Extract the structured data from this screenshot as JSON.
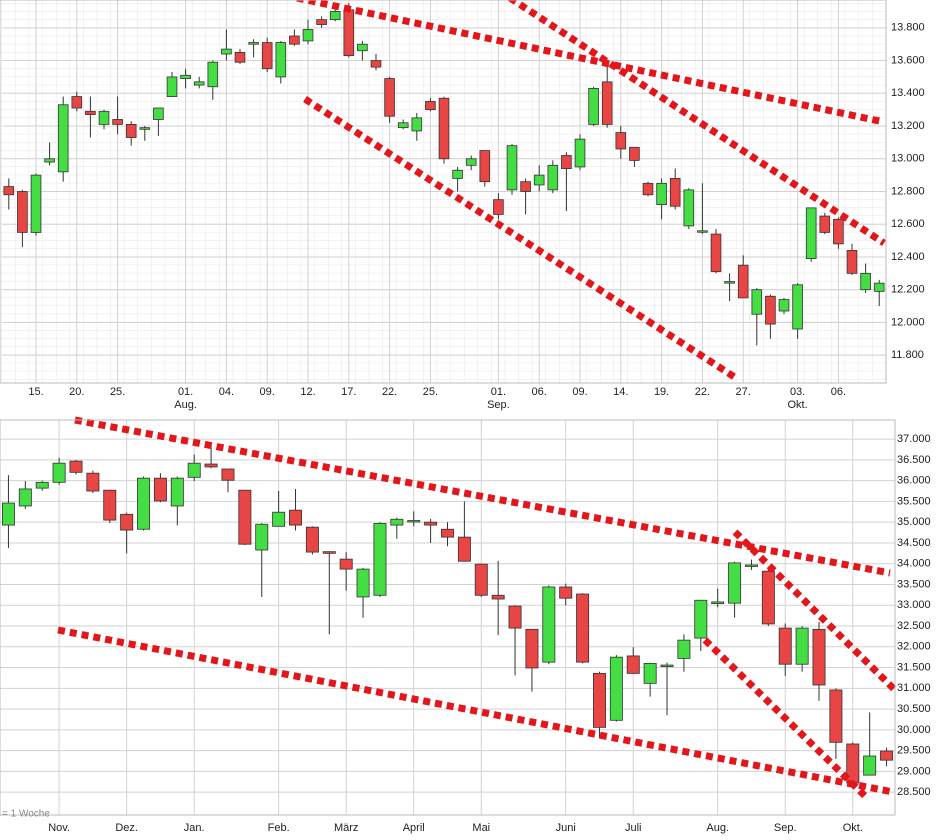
{
  "chart_data": [
    {
      "type": "candlestick",
      "categories": [
        null,
        null,
        "15.",
        null,
        null,
        "20.",
        null,
        null,
        "25.",
        null,
        null,
        null,
        null,
        "01.",
        null,
        null,
        "04.",
        null,
        null,
        "09.",
        null,
        null,
        "12.",
        null,
        null,
        "17.",
        null,
        null,
        "22.",
        null,
        null,
        "25.",
        null,
        null,
        null,
        null,
        "01.",
        null,
        null,
        "06.",
        null,
        null,
        "09.",
        null,
        null,
        "14.",
        null,
        null,
        "19.",
        null,
        null,
        "22.",
        null,
        null,
        "27.",
        null,
        null,
        null,
        "03.",
        null,
        null,
        "06.",
        null,
        null,
        null
      ],
      "months": [
        null,
        null,
        null,
        null,
        null,
        null,
        null,
        null,
        null,
        null,
        null,
        null,
        null,
        "Aug.",
        null,
        null,
        null,
        null,
        null,
        null,
        null,
        null,
        null,
        null,
        null,
        null,
        null,
        null,
        null,
        null,
        null,
        null,
        null,
        null,
        null,
        null,
        "Sep.",
        null,
        null,
        null,
        null,
        null,
        null,
        null,
        null,
        null,
        null,
        null,
        null,
        null,
        null,
        null,
        null,
        null,
        null,
        null,
        null,
        null,
        "Okt.",
        null,
        null,
        null,
        null,
        null,
        null
      ],
      "open": [
        12830,
        12800,
        12550,
        12980,
        12920,
        13380,
        13290,
        13210,
        13240,
        13210,
        13180,
        13240,
        13380,
        13490,
        13450,
        13440,
        13640,
        13650,
        13700,
        13710,
        13500,
        13750,
        13720,
        13850,
        13850,
        13910,
        13660,
        13600,
        13490,
        13190,
        13170,
        13350,
        13370,
        12880,
        12960,
        13050,
        12750,
        12810,
        12860,
        12840,
        12810,
        13020,
        12950,
        13210,
        13470,
        13160,
        13070,
        12850,
        12720,
        12880,
        12590,
        12560,
        12540,
        12240,
        12350,
        12050,
        12160,
        12070,
        11960,
        12390,
        12650,
        12630,
        12440,
        12200,
        12190
      ],
      "high": [
        12880,
        12810,
        12910,
        13100,
        13380,
        13410,
        13380,
        13300,
        13380,
        13230,
        13200,
        13310,
        13530,
        13550,
        13500,
        13600,
        13790,
        13670,
        13730,
        13740,
        13720,
        13790,
        13850,
        13870,
        13950,
        13950,
        13720,
        13640,
        13500,
        13240,
        13280,
        13370,
        13380,
        12950,
        13020,
        13050,
        12790,
        13090,
        12880,
        12960,
        12990,
        13040,
        13150,
        13440,
        13570,
        13200,
        13070,
        12860,
        12880,
        12940,
        12820,
        12850,
        12570,
        12300,
        12410,
        12210,
        12170,
        12150,
        12240,
        12700,
        12670,
        12640,
        12480,
        12360,
        12260
      ],
      "low": [
        12690,
        12460,
        12530,
        12960,
        12860,
        13290,
        13130,
        13180,
        13150,
        13080,
        13110,
        13140,
        13380,
        13430,
        13430,
        13360,
        13600,
        13580,
        13620,
        13530,
        13460,
        13690,
        13700,
        13800,
        13840,
        13620,
        13600,
        13540,
        13220,
        13180,
        13110,
        13290,
        12970,
        12800,
        12930,
        12830,
        12630,
        12780,
        12660,
        12800,
        12790,
        12680,
        12930,
        13200,
        13190,
        13000,
        12950,
        12770,
        12630,
        12690,
        12570,
        12540,
        12300,
        12130,
        12150,
        11860,
        11900,
        12050,
        11900,
        12370,
        12540,
        12450,
        12290,
        12180,
        12100
      ],
      "close": [
        12780,
        12550,
        12900,
        13000,
        13330,
        13310,
        13270,
        13290,
        13210,
        13130,
        13190,
        13310,
        13500,
        13510,
        13470,
        13590,
        13670,
        13590,
        13710,
        13550,
        13710,
        13700,
        13790,
        13820,
        13900,
        13630,
        13700,
        13560,
        13260,
        13220,
        13250,
        13300,
        13000,
        12930,
        13000,
        12860,
        12660,
        13080,
        12800,
        12900,
        12960,
        12940,
        13120,
        13430,
        13210,
        13060,
        12990,
        12780,
        12850,
        12710,
        12810,
        12560,
        12310,
        12250,
        12150,
        12200,
        11990,
        12140,
        12230,
        12700,
        12550,
        12480,
        12300,
        12300,
        12240
      ],
      "up_color": "#44dd44",
      "down_color": "#e84545",
      "ylim": [
        11630,
        13970
      ],
      "yticks": [
        {
          "value": 11800,
          "label": "11.800"
        },
        {
          "value": 12000,
          "label": "12.000"
        },
        {
          "value": 12200,
          "label": "12.200"
        },
        {
          "value": 12400,
          "label": "12.400"
        },
        {
          "value": 12600,
          "label": "12.600"
        },
        {
          "value": 12800,
          "label": "12.800"
        },
        {
          "value": 13000,
          "label": "13.000"
        },
        {
          "value": 13200,
          "label": "13.200"
        },
        {
          "value": 13400,
          "label": "13.400"
        },
        {
          "value": 13600,
          "label": "13.600"
        },
        {
          "value": 13800,
          "label": "13.800"
        }
      ],
      "grid": true
    },
    {
      "type": "candlestick",
      "categories": [
        null,
        null,
        null,
        "Nov.",
        null,
        null,
        null,
        "Dez.",
        null,
        null,
        null,
        "Jan.",
        null,
        null,
        null,
        null,
        "Feb.",
        null,
        null,
        null,
        "März",
        null,
        null,
        null,
        "April",
        null,
        null,
        null,
        "Mai",
        null,
        null,
        null,
        null,
        "Juni",
        null,
        null,
        null,
        "Juli",
        null,
        null,
        null,
        null,
        "Aug.",
        null,
        null,
        null,
        "Sep.",
        null,
        null,
        null,
        "Okt.",
        null,
        null
      ],
      "open": [
        34930,
        35390,
        35820,
        35960,
        36470,
        36180,
        35770,
        35190,
        34830,
        36060,
        35390,
        36080,
        36400,
        36280,
        35770,
        34330,
        34900,
        35290,
        34880,
        34290,
        34110,
        33200,
        33240,
        34930,
        35020,
        35000,
        34830,
        34640,
        33990,
        33240,
        32980,
        32420,
        31630,
        33440,
        33270,
        31360,
        30230,
        31780,
        31120,
        31550,
        31720,
        32210,
        33040,
        33050,
        33940,
        33820,
        32450,
        31580,
        32420,
        30960,
        29660,
        28910,
        29490
      ],
      "high": [
        36130,
        35990,
        36000,
        36550,
        36500,
        36240,
        35780,
        35230,
        36100,
        36180,
        36100,
        36630,
        36920,
        36290,
        35780,
        34980,
        35750,
        35800,
        34900,
        34300,
        34280,
        33900,
        35000,
        35110,
        35260,
        35080,
        35000,
        35500,
        34000,
        34070,
        33000,
        32430,
        33480,
        33520,
        33290,
        31400,
        31800,
        31990,
        31620,
        31620,
        32300,
        33130,
        33400,
        34050,
        34100,
        33900,
        32560,
        32500,
        32600,
        31000,
        29700,
        30420,
        29570
      ],
      "low": [
        34380,
        35320,
        35760,
        35900,
        36150,
        35700,
        34980,
        34250,
        34800,
        35480,
        34920,
        35990,
        36300,
        35720,
        34450,
        33200,
        34900,
        34800,
        34220,
        32300,
        33350,
        32700,
        33200,
        34600,
        34900,
        34500,
        34420,
        34050,
        33200,
        32280,
        31310,
        30920,
        31580,
        33000,
        31600,
        29800,
        30200,
        31350,
        30800,
        30350,
        31400,
        31900,
        32950,
        32700,
        33850,
        32500,
        31300,
        31400,
        30700,
        29300,
        28600,
        28900,
        29120
      ],
      "close": [
        35460,
        35800,
        35960,
        36420,
        36200,
        35750,
        35050,
        34810,
        36060,
        35510,
        36060,
        36420,
        36330,
        36010,
        34470,
        34950,
        35240,
        34930,
        34280,
        34250,
        33870,
        33870,
        34970,
        35070,
        35040,
        34930,
        34640,
        34060,
        33240,
        33150,
        32450,
        31490,
        33440,
        33170,
        31630,
        30060,
        31750,
        31360,
        31600,
        31560,
        32160,
        33120,
        33080,
        34020,
        33970,
        32550,
        31580,
        32450,
        31080,
        29700,
        28720,
        29370,
        29270
      ],
      "up_color": "#44dd44",
      "down_color": "#e84545",
      "ylim": [
        27950,
        37460
      ],
      "yticks": [
        {
          "value": 28500,
          "label": "28.500"
        },
        {
          "value": 29000,
          "label": "29.000"
        },
        {
          "value": 29500,
          "label": "29.500"
        },
        {
          "value": 30000,
          "label": "30.000"
        },
        {
          "value": 30500,
          "label": "30.500"
        },
        {
          "value": 31000,
          "label": "31.000"
        },
        {
          "value": 31500,
          "label": "31.500"
        },
        {
          "value": 32000,
          "label": "32.000"
        },
        {
          "value": 32500,
          "label": "32.500"
        },
        {
          "value": 33000,
          "label": "33.000"
        },
        {
          "value": 33500,
          "label": "33.500"
        },
        {
          "value": 34000,
          "label": "34.000"
        },
        {
          "value": 34500,
          "label": "34.500"
        },
        {
          "value": 35000,
          "label": "35.000"
        },
        {
          "value": 35500,
          "label": "35.500"
        },
        {
          "value": 36000,
          "label": "36.000"
        },
        {
          "value": 36500,
          "label": "36.500"
        },
        {
          "value": 37000,
          "label": "37.000"
        }
      ],
      "annotation": "= 1 Woche",
      "grid": true
    }
  ]
}
